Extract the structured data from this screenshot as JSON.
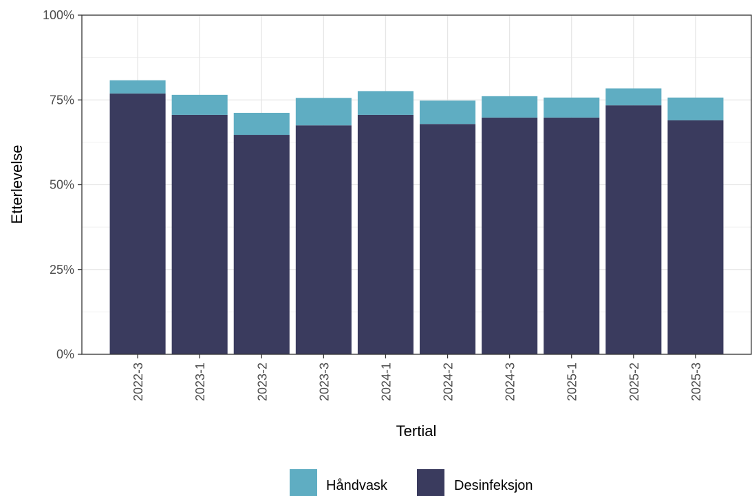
{
  "chart_data": {
    "type": "bar",
    "stacked": true,
    "xlabel": "Tertial",
    "ylabel": "Etterlevelse",
    "ylim": [
      0,
      100
    ],
    "y_ticks": [
      "0%",
      "25%",
      "50%",
      "75%",
      "100%"
    ],
    "y_tick_values": [
      0,
      25,
      50,
      75,
      100
    ],
    "grid": true,
    "legend_position": "bottom",
    "categories": [
      "2022-3",
      "2023-1",
      "2023-2",
      "2023-3",
      "2024-1",
      "2024-2",
      "2024-3",
      "2025-1",
      "2025-2",
      "2025-3"
    ],
    "series": [
      {
        "name": "Desinfeksjon",
        "color": "#3a3b5e",
        "values": [
          76.9,
          70.6,
          64.7,
          67.5,
          70.6,
          67.9,
          69.8,
          69.8,
          73.4,
          69.0
        ]
      },
      {
        "name": "Håndvask",
        "color": "#5fadc2",
        "values": [
          3.9,
          5.9,
          6.5,
          8.1,
          7.0,
          6.9,
          6.3,
          5.9,
          5.0,
          6.7
        ]
      }
    ],
    "legend": [
      {
        "name": "Håndvask",
        "color": "#5fadc2"
      },
      {
        "name": "Desinfeksjon",
        "color": "#3a3b5e"
      }
    ]
  }
}
